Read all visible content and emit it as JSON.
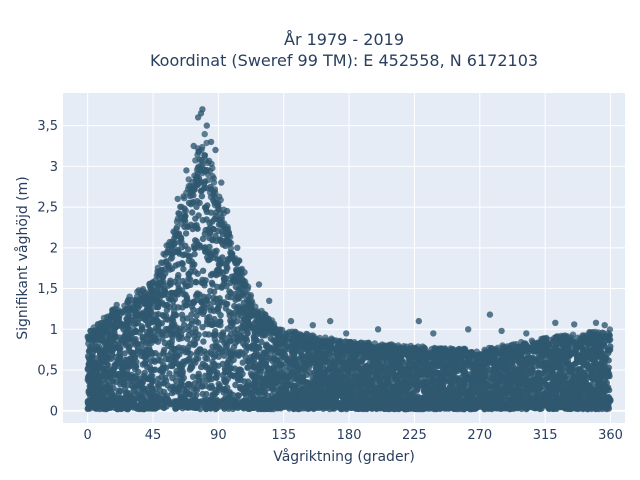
{
  "chart_data": {
    "type": "scatter",
    "title_lines": [
      "År 1979 - 2019",
      "Koordinat (Sweref 99 TM): E 452558, N 6172103"
    ],
    "xlabel": "Vågriktning (grader)",
    "ylabel": "Signifikant våghöjd (m)",
    "xlim": [
      -17,
      370
    ],
    "ylim": [
      -0.15,
      3.9
    ],
    "x_ticks": [
      0,
      45,
      90,
      135,
      180,
      225,
      270,
      315,
      360
    ],
    "x_tick_labels": [
      "0",
      "45",
      "90",
      "135",
      "180",
      "225",
      "270",
      "315",
      "360"
    ],
    "y_ticks": [
      0,
      0.5,
      1,
      1.5,
      2,
      2.5,
      3,
      3.5
    ],
    "y_tick_labels": [
      "0",
      "0,5",
      "1",
      "1,5",
      "2",
      "2,5",
      "3",
      "3,5"
    ],
    "grid": true,
    "marker_color": "#2f5870",
    "plot_bg": "#e5ecf6",
    "envelope": {
      "description_points": [
        {
          "x": 0,
          "y_max": 0.95
        },
        {
          "x": 20,
          "y_max": 1.3
        },
        {
          "x": 45,
          "y_max": 1.6
        },
        {
          "x": 60,
          "y_max": 2.3
        },
        {
          "x": 72,
          "y_max": 3.0
        },
        {
          "x": 80,
          "y_max": 3.45
        },
        {
          "x": 90,
          "y_max": 2.7
        },
        {
          "x": 100,
          "y_max": 2.1
        },
        {
          "x": 115,
          "y_max": 1.3
        },
        {
          "x": 135,
          "y_max": 1.0
        },
        {
          "x": 180,
          "y_max": 0.85
        },
        {
          "x": 270,
          "y_max": 0.75
        },
        {
          "x": 315,
          "y_max": 0.9
        },
        {
          "x": 360,
          "y_max": 1.0
        }
      ]
    },
    "outliers": [
      {
        "x": 79,
        "y": 3.7
      },
      {
        "x": 78,
        "y": 3.65
      },
      {
        "x": 76,
        "y": 3.6
      },
      {
        "x": 82,
        "y": 3.5
      },
      {
        "x": 85,
        "y": 3.3
      },
      {
        "x": 73,
        "y": 3.25
      },
      {
        "x": 88,
        "y": 3.2
      },
      {
        "x": 68,
        "y": 2.95
      },
      {
        "x": 62,
        "y": 2.6
      },
      {
        "x": 92,
        "y": 2.8
      },
      {
        "x": 96,
        "y": 2.45
      },
      {
        "x": 103,
        "y": 2.0
      },
      {
        "x": 108,
        "y": 1.7
      },
      {
        "x": 118,
        "y": 1.55
      },
      {
        "x": 125,
        "y": 1.35
      },
      {
        "x": 40,
        "y": 1.45
      },
      {
        "x": 28,
        "y": 1.35
      },
      {
        "x": 20,
        "y": 1.3
      },
      {
        "x": 50,
        "y": 1.7
      },
      {
        "x": 55,
        "y": 1.95
      },
      {
        "x": 140,
        "y": 1.1
      },
      {
        "x": 155,
        "y": 1.05
      },
      {
        "x": 167,
        "y": 1.1
      },
      {
        "x": 178,
        "y": 0.95
      },
      {
        "x": 200,
        "y": 1.0
      },
      {
        "x": 228,
        "y": 1.1
      },
      {
        "x": 238,
        "y": 0.95
      },
      {
        "x": 262,
        "y": 1.0
      },
      {
        "x": 277,
        "y": 1.18
      },
      {
        "x": 285,
        "y": 0.98
      },
      {
        "x": 302,
        "y": 0.95
      },
      {
        "x": 322,
        "y": 1.08
      },
      {
        "x": 335,
        "y": 1.06
      },
      {
        "x": 350,
        "y": 1.08
      },
      {
        "x": 356,
        "y": 1.05
      },
      {
        "x": 2,
        "y": 0.98
      },
      {
        "x": 8,
        "y": 0.96
      }
    ]
  }
}
